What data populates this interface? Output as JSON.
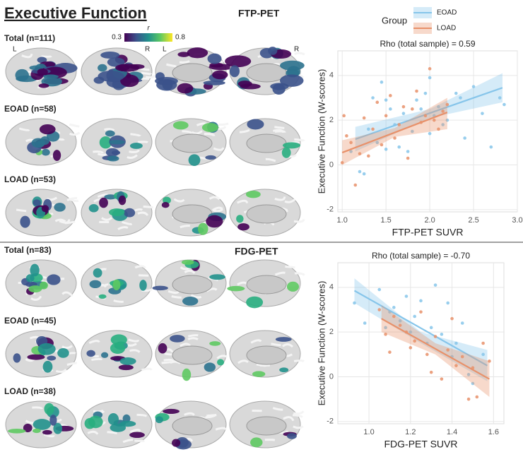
{
  "title": "Executive Function",
  "colorbar": {
    "label": "r",
    "min": 0.3,
    "max": 0.8
  },
  "hemispheres": [
    "L",
    "R",
    "L",
    "R"
  ],
  "legend": {
    "title": "Group"
  },
  "sections": [
    {
      "label": "FTP-PET",
      "rows": [
        "Total (n=111)",
        "EOAD (n=58)",
        "LOAD (n=53)"
      ]
    },
    {
      "label": "FDG-PET",
      "rows": [
        "Total (n=83)",
        "EOAD (n=45)",
        "LOAD (n=38)"
      ]
    }
  ],
  "chart_data": [
    {
      "type": "scatter",
      "title": "Rho (total sample) = 0.59",
      "x_label": "FTP-PET SUVR",
      "y_label": "Executive Function (W-scores)",
      "xlim": [
        0.95,
        3.0
      ],
      "ylim": [
        -2.1,
        5.1
      ],
      "grid": true,
      "xticks": [
        {
          "value": 1,
          "label": "1.0"
        },
        1.5,
        {
          "value": 2,
          "label": "2.0"
        },
        2.5,
        {
          "value": 3,
          "label": "3.0"
        }
      ],
      "yticks": [
        -2,
        0,
        2,
        4
      ],
      "series": [
        {
          "name": "EOAD",
          "color": "#86c5ea",
          "x": [
            1.1,
            1.2,
            1.25,
            1.3,
            1.35,
            1.4,
            1.45,
            1.5,
            1.5,
            1.55,
            1.6,
            1.65,
            1.7,
            1.75,
            1.8,
            1.85,
            1.9,
            1.95,
            2.0,
            2.0,
            2.05,
            2.1,
            2.15,
            2.2,
            2.3,
            2.35,
            2.4,
            2.5,
            2.6,
            2.7,
            2.8,
            2.85
          ],
          "values": [
            0.6,
            -0.3,
            -0.4,
            1.6,
            3.0,
            1.0,
            3.7,
            2.9,
            0.7,
            2.5,
            1.8,
            0.8,
            2.3,
            0.6,
            1.5,
            2.9,
            2.5,
            3.2,
            3.9,
            1.4,
            2.2,
            2.6,
            1.8,
            2.0,
            3.2,
            3.0,
            1.2,
            3.5,
            2.3,
            0.8,
            3.0,
            2.7
          ],
          "fit_x": [
            1.15,
            2.83
          ],
          "fit_y": [
            1.15,
            3.45
          ],
          "band_x": [
            1.15,
            2.0,
            2.83
          ],
          "ci_lower": [
            0.6,
            2.1,
            2.8
          ],
          "ci_upper": [
            1.7,
            2.5,
            4.1
          ]
        },
        {
          "name": "LOAD",
          "color": "#e8916a",
          "x": [
            1.0,
            1.02,
            1.05,
            1.1,
            1.15,
            1.2,
            1.25,
            1.3,
            1.35,
            1.4,
            1.45,
            1.5,
            1.55,
            1.6,
            1.65,
            1.7,
            1.75,
            1.8,
            1.85,
            1.9,
            1.95,
            2.0,
            2.05,
            2.1,
            2.15,
            2.2
          ],
          "values": [
            0.1,
            2.2,
            1.3,
            1.0,
            -0.9,
            0.5,
            2.1,
            0.4,
            1.6,
            2.8,
            0.9,
            2.2,
            3.1,
            1.2,
            1.8,
            2.6,
            0.3,
            2.5,
            3.3,
            1.9,
            2.2,
            4.3,
            2.0,
            1.6,
            2.4,
            2.7
          ],
          "fit_x": [
            1.0,
            2.2
          ],
          "fit_y": [
            0.55,
            2.35
          ],
          "band_x": [
            1.0,
            1.6,
            2.2
          ],
          "ci_lower": [
            0.0,
            1.25,
            1.6
          ],
          "ci_upper": [
            1.1,
            1.65,
            3.0
          ]
        }
      ]
    },
    {
      "type": "scatter",
      "title": "Rho (total sample) = -0.70",
      "x_label": "FDG-PET SUVR",
      "y_label": "Executive Function (W-scores)",
      "xlim": [
        0.85,
        1.65
      ],
      "ylim": [
        -2.1,
        5.1
      ],
      "grid": true,
      "xticks": [
        {
          "value": 1,
          "label": "1.0"
        },
        1.2,
        1.4,
        1.6
      ],
      "yticks": [
        -2,
        0,
        2,
        4
      ],
      "series": [
        {
          "name": "EOAD",
          "color": "#86c5ea",
          "x": [
            0.93,
            0.98,
            1.05,
            1.08,
            1.1,
            1.12,
            1.15,
            1.18,
            1.2,
            1.22,
            1.25,
            1.28,
            1.3,
            1.32,
            1.35,
            1.38,
            1.4,
            1.42,
            1.45,
            1.48,
            1.5,
            1.55
          ],
          "values": [
            3.3,
            2.4,
            3.9,
            2.2,
            2.9,
            3.1,
            2.5,
            3.6,
            2.0,
            2.7,
            3.4,
            1.5,
            2.2,
            4.1,
            1.9,
            3.3,
            0.9,
            1.5,
            2.4,
            0.1,
            -0.3,
            1.0
          ],
          "fit_x": [
            0.93,
            1.57
          ],
          "fit_y": [
            3.85,
            0.5
          ],
          "band_x": [
            0.93,
            1.25,
            1.57
          ],
          "ci_lower": [
            3.3,
            1.5,
            -0.2
          ],
          "ci_upper": [
            4.4,
            2.0,
            1.2
          ]
        },
        {
          "name": "LOAD",
          "color": "#e8916a",
          "x": [
            1.05,
            1.08,
            1.1,
            1.12,
            1.15,
            1.18,
            1.2,
            1.22,
            1.25,
            1.28,
            1.3,
            1.32,
            1.35,
            1.38,
            1.4,
            1.42,
            1.45,
            1.48,
            1.5,
            1.52,
            1.55,
            1.58
          ],
          "values": [
            3.0,
            1.9,
            1.1,
            2.7,
            2.3,
            2.0,
            1.3,
            1.6,
            2.9,
            1.0,
            0.2,
            1.8,
            -0.1,
            1.2,
            2.6,
            0.5,
            0.9,
            -1.0,
            0.4,
            -0.9,
            1.5,
            0.7
          ],
          "fit_x": [
            1.06,
            1.58
          ],
          "fit_y": [
            2.6,
            -0.1
          ],
          "band_x": [
            1.06,
            1.32,
            1.58
          ],
          "ci_lower": [
            2.0,
            1.0,
            -0.9
          ],
          "ci_upper": [
            3.2,
            1.5,
            0.7
          ]
        }
      ]
    }
  ]
}
